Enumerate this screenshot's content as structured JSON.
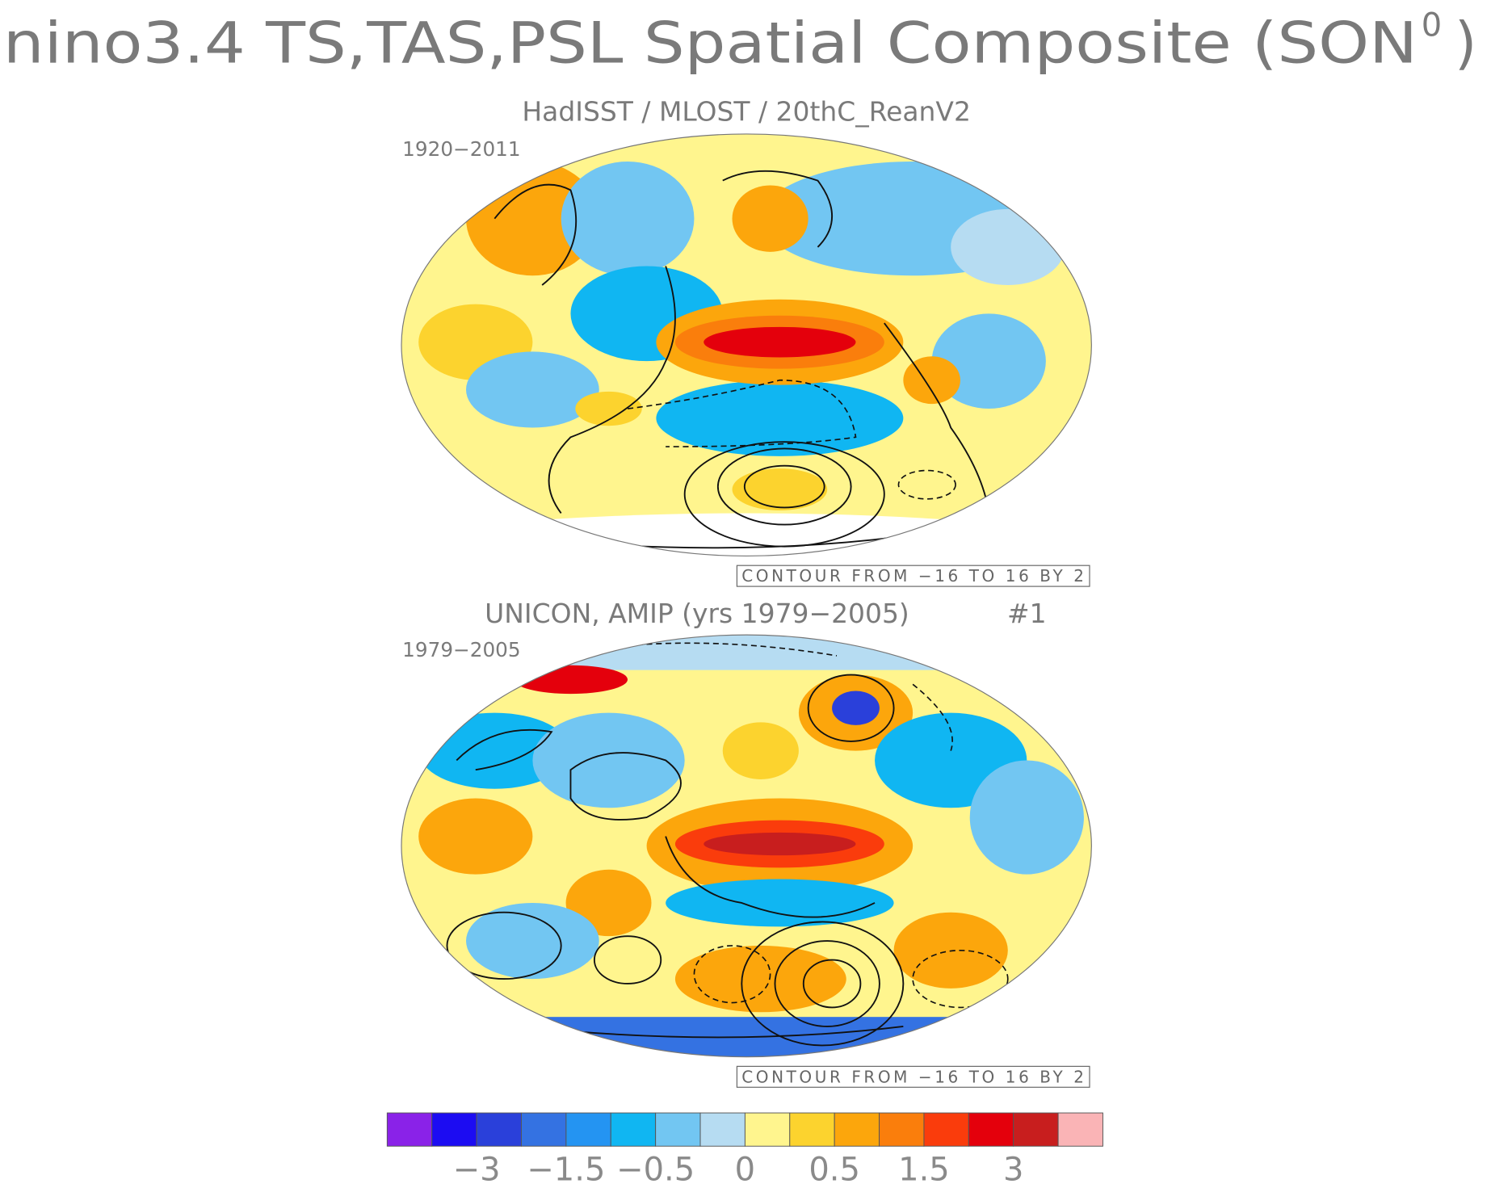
{
  "title": {
    "main": "nino3.4 TS,TAS,PSL Spatial Composite (SON",
    "superscript": "0",
    "close": ")"
  },
  "panels": [
    {
      "title": "HadISST / MLOST / 20thC_ReanV2",
      "years": "1920−2011",
      "contour_note": "CONTOUR FROM −16 TO 16 BY 2"
    },
    {
      "title": "UNICON, AMIP (yrs 1979−2005)",
      "run": "#1",
      "years": "1979−2005",
      "contour_note": "CONTOUR FROM −16 TO 16 BY 2"
    }
  ],
  "colorbar": {
    "colors": [
      "#8a22e8",
      "#1c0cf2",
      "#2a40da",
      "#3472e2",
      "#2494f2",
      "#10b6f2",
      "#72c6f2",
      "#b6dcf2",
      "#fff58e",
      "#fcd32e",
      "#fca60c",
      "#fa7e0c",
      "#fa3c0c",
      "#e4000c",
      "#c81e1e",
      "#fab4b6"
    ],
    "labels": [
      "−3",
      "−1.5",
      "−0.5",
      "0",
      "0.5",
      "1.5",
      "3"
    ]
  }
}
